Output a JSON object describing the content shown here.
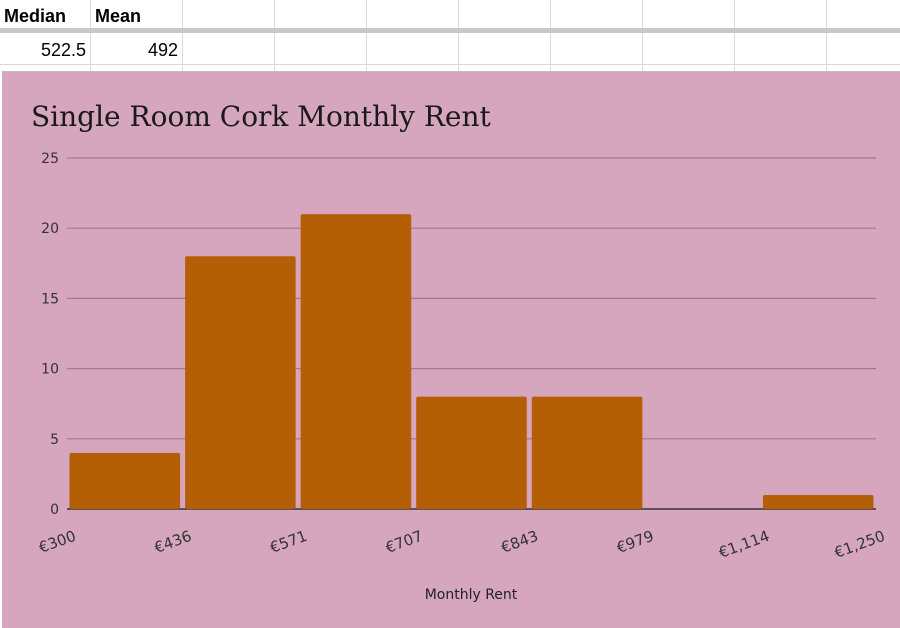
{
  "sheet": {
    "header": {
      "median_label": "Median",
      "mean_label": "Mean"
    },
    "values": {
      "median": "522.5",
      "mean": "492"
    }
  },
  "colors": {
    "chart_background": "#d5a6bd",
    "bar_fill": "#b45f06",
    "gridline": "#a07a8c"
  },
  "chart_data": {
    "type": "bar",
    "title": "Single Room Cork Monthly Rent",
    "xlabel": "Monthly Rent",
    "ylabel": "",
    "x_tick_labels": [
      "€300",
      "€436",
      "€571",
      "€707",
      "€843",
      "€979",
      "€1,114",
      "€1,250"
    ],
    "bins": [
      [
        "€300",
        "€436"
      ],
      [
        "€436",
        "€571"
      ],
      [
        "€571",
        "€707"
      ],
      [
        "€707",
        "€843"
      ],
      [
        "€843",
        "€979"
      ],
      [
        "€979",
        "€1,114"
      ],
      [
        "€1,114",
        "€1,250"
      ]
    ],
    "values": [
      4,
      18,
      21,
      8,
      8,
      0,
      1
    ],
    "ylim": [
      0,
      25
    ],
    "y_ticks": [
      0,
      5,
      10,
      15,
      20,
      25
    ],
    "grid": true,
    "legend": "none"
  }
}
